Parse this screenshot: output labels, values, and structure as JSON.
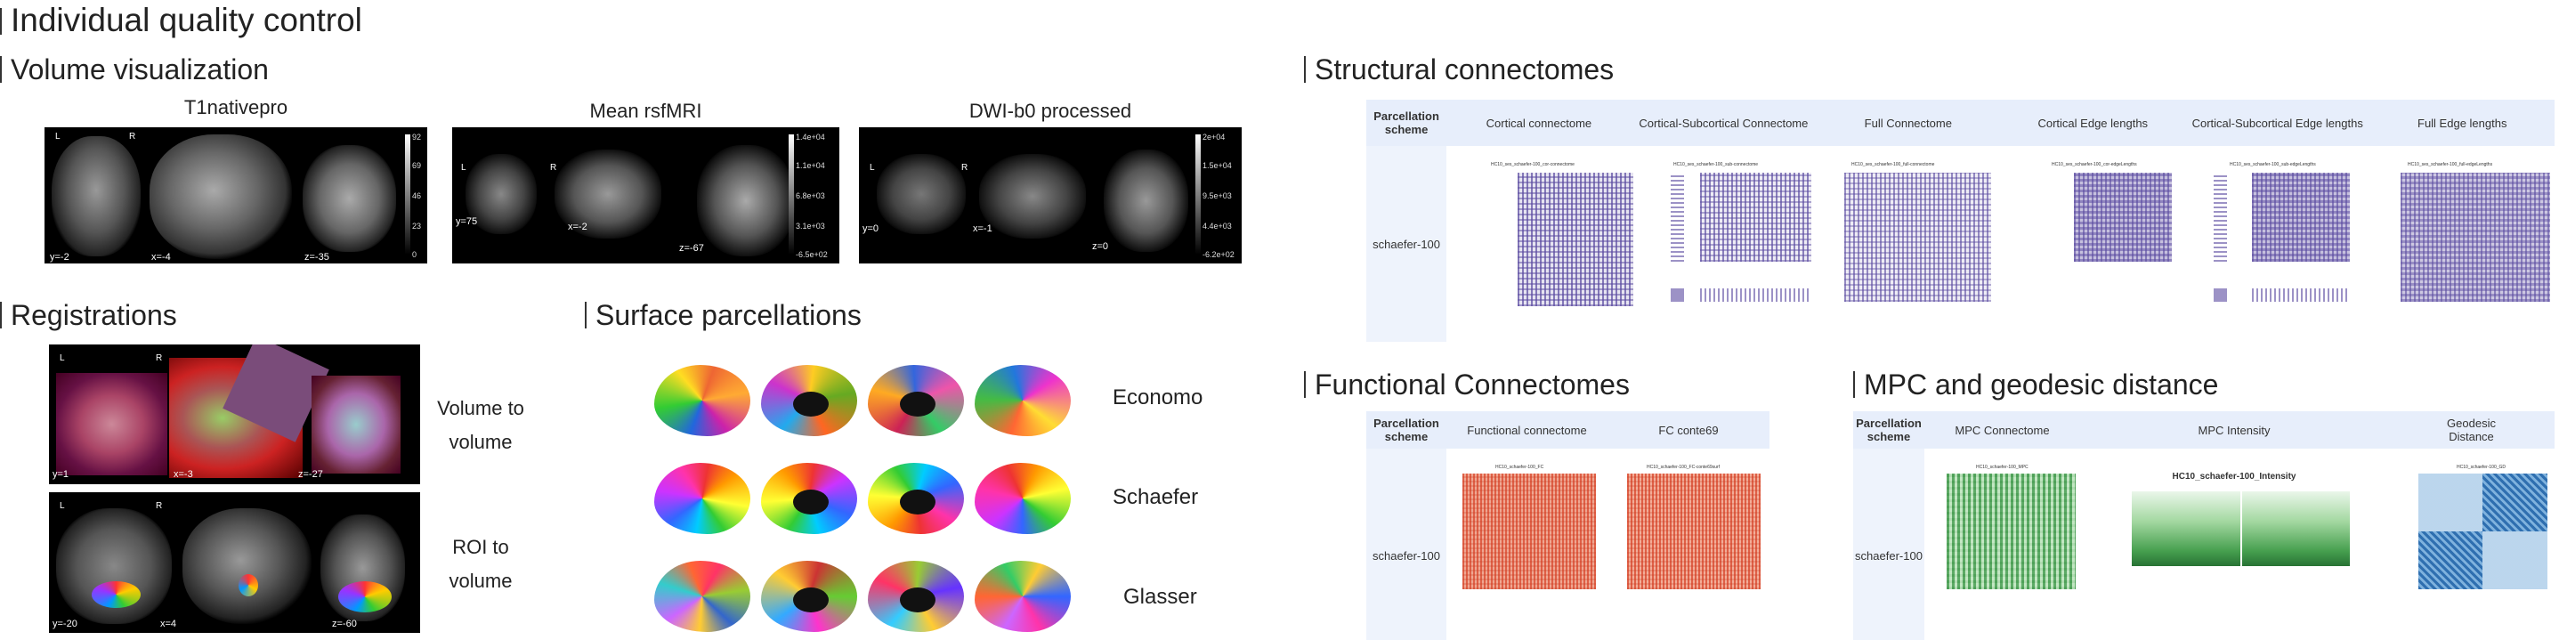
{
  "page_title": "Individual quality control",
  "volume": {
    "title": "Volume visualization",
    "panels": [
      {
        "label": "T1nativepro",
        "coords": [
          "y=-2",
          "x=-4",
          "z=-35"
        ],
        "scale": [
          "92",
          "69",
          "46",
          "23",
          "0"
        ]
      },
      {
        "label": "Mean rsfMRI",
        "coords": [
          "y=75",
          "x=-2",
          "z=-67"
        ],
        "scale": [
          "1.4e+04",
          "1.1e+04",
          "6.8e+03",
          "3.1e+03",
          "-6.5e+02"
        ]
      },
      {
        "label": "DWI-b0 processed",
        "coords": [
          "y=0",
          "x=-1",
          "z=0"
        ],
        "scale": [
          "2e+04",
          "1.5e+04",
          "9.5e+03",
          "4.4e+03",
          "-6.2e+02"
        ]
      }
    ],
    "lr": [
      "L",
      "R"
    ]
  },
  "registrations": {
    "title": "Registrations",
    "rows": [
      {
        "label_a": "Volume to",
        "label_b": "volume",
        "coords": [
          "y=1",
          "x=-3",
          "z=-27"
        ]
      },
      {
        "label_a": "ROI to",
        "label_b": "volume",
        "coords": [
          "y=-20",
          "x=4",
          "z=-60"
        ]
      }
    ]
  },
  "surface": {
    "title": "Surface parcellations",
    "rows": [
      "Economo",
      "Schaefer",
      "Glasser"
    ]
  },
  "structural": {
    "title": "Structural connectomes",
    "header": [
      "Parcellation scheme",
      "Cortical connectome",
      "Cortical-Subcortical Connectome",
      "Full Connectome",
      "Cortical Edge lengths",
      "Cortical-Subcortical Edge lengths",
      "Full Edge lengths"
    ],
    "row_label": "schaefer-100",
    "thumb_titles": [
      "HC10_ses_schaefer-100_cor-connectome",
      "HC10_ses_schaefer-100_sub-connectome",
      "HC10_ses_schaefer-100_full-connectome",
      "HC10_ses_schaefer-100_cor-edgeLengths",
      "HC10_ses_schaefer-100_sub-edgeLengths",
      "HC10_ses_schaefer-100_full-edgeLengths"
    ]
  },
  "functional": {
    "title": "Functional Connectomes",
    "header": [
      "Parcellation scheme",
      "Functional connectome",
      "FC conte69"
    ],
    "row_label": "schaefer-100",
    "thumb_titles": [
      "HC10_schaefer-100_FC",
      "HC10_schaefer-100_FC-conte69surf"
    ]
  },
  "mpc": {
    "title": "MPC and geodesic distance",
    "header": [
      "Parcellation scheme",
      "MPC Connectome",
      "MPC Intensity",
      "Geodesic Distance"
    ],
    "row_label": "schaefer-100",
    "intensity_title": "HC10_schaefer-100_Intensity",
    "thumb_titles": [
      "HC10_schaefer-100_MPC",
      "HC10_schaefer-100_GD"
    ]
  },
  "colors": {
    "header_bg": "#e7eefb",
    "structural": "#5a4aa0",
    "functional": "#d9472b",
    "mpc": "#3f9b4a",
    "geodesic": "#3a7fc0"
  }
}
